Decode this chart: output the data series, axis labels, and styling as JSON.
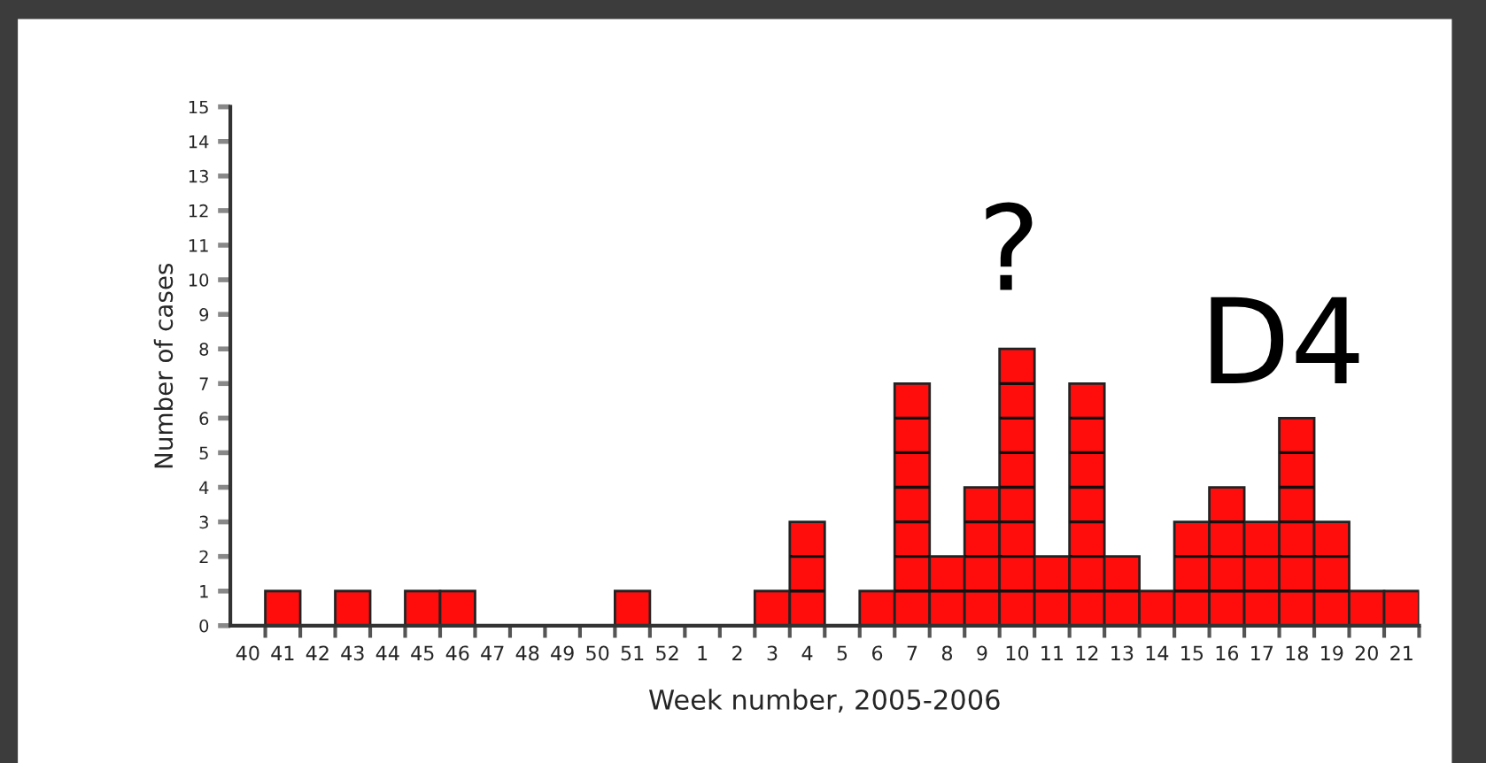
{
  "chart_data": {
    "type": "bar",
    "xlabel": "Week number, 2005-2006",
    "ylabel": "Number of cases",
    "categories": [
      "40",
      "41",
      "42",
      "43",
      "44",
      "45",
      "46",
      "47",
      "48",
      "49",
      "50",
      "51",
      "52",
      "1",
      "2",
      "3",
      "4",
      "5",
      "6",
      "7",
      "8",
      "9",
      "10",
      "11",
      "12",
      "13",
      "14",
      "15",
      "16",
      "17",
      "18",
      "19",
      "20",
      "21"
    ],
    "values": [
      0,
      1,
      0,
      1,
      0,
      1,
      1,
      0,
      0,
      0,
      0,
      1,
      0,
      0,
      0,
      1,
      3,
      0,
      1,
      7,
      2,
      4,
      8,
      2,
      7,
      2,
      1,
      3,
      4,
      3,
      6,
      3,
      1,
      1
    ],
    "color": "#ff0d0d",
    "ylim": [
      0,
      15
    ],
    "yticks": [
      0,
      1,
      2,
      3,
      4,
      5,
      6,
      7,
      8,
      9,
      10,
      11,
      12,
      13,
      14,
      15
    ],
    "grid": false,
    "legend": false,
    "annotations": [
      "?",
      "D4"
    ]
  }
}
